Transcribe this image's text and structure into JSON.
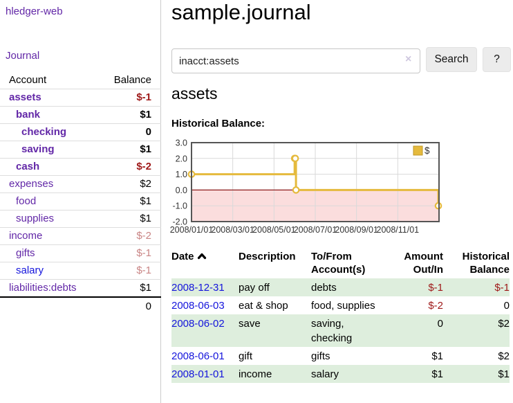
{
  "brand": "hledger-web",
  "nav": {
    "journal": "Journal"
  },
  "colors": {
    "purple": "#6227a7",
    "blue": "#1414dc",
    "neg_strong": "#9e1818",
    "neg_muted": "#c98585",
    "row_green": "#deeedd",
    "gold": "#e5ba3d",
    "gold_dark": "#bf9727",
    "pink": "#fbdddd",
    "zero_line": "#8c1a1a",
    "grid": "#d9d9d9",
    "chart_border": "#555555",
    "button_bg": "#ececec"
  },
  "sidebar_accounts": {
    "headers": {
      "account": "Account",
      "balance": "Balance"
    },
    "rows": [
      {
        "name": "assets",
        "indent": 1,
        "bold": true,
        "link_color": "purple",
        "balance": "$-1",
        "balance_style": "neg-strong"
      },
      {
        "name": "bank",
        "indent": 2,
        "bold": true,
        "link_color": "purple",
        "balance": "$1",
        "balance_style": "pos"
      },
      {
        "name": "checking",
        "indent": 3,
        "bold": true,
        "link_color": "purple",
        "balance": "0",
        "balance_style": "pos"
      },
      {
        "name": "saving",
        "indent": 3,
        "bold": true,
        "link_color": "purple",
        "balance": "$1",
        "balance_style": "pos"
      },
      {
        "name": "cash",
        "indent": 2,
        "bold": true,
        "link_color": "purple",
        "balance": "$-2",
        "balance_style": "neg-strong"
      },
      {
        "name": "expenses",
        "indent": 1,
        "bold": false,
        "link_color": "purple",
        "balance": "$2",
        "balance_style": "pos"
      },
      {
        "name": "food",
        "indent": 2,
        "bold": false,
        "link_color": "purple",
        "balance": "$1",
        "balance_style": "pos"
      },
      {
        "name": "supplies",
        "indent": 2,
        "bold": false,
        "link_color": "purple",
        "balance": "$1",
        "balance_style": "pos"
      },
      {
        "name": "income",
        "indent": 1,
        "bold": false,
        "link_color": "purple",
        "balance": "$-2",
        "balance_style": "neg-muted"
      },
      {
        "name": "gifts",
        "indent": 2,
        "bold": false,
        "link_color": "purple",
        "balance": "$-1",
        "balance_style": "neg-muted"
      },
      {
        "name": "salary",
        "indent": 2,
        "bold": false,
        "link_color": "blue",
        "balance": "$-1",
        "balance_style": "neg-muted"
      },
      {
        "name": "liabilities:debts",
        "indent": 1,
        "bold": false,
        "link_color": "purple",
        "balance": "$1",
        "balance_style": "pos"
      }
    ],
    "total": "0"
  },
  "header": {
    "title": "sample.journal"
  },
  "search": {
    "value": "inacct:assets",
    "clear_icon": "×",
    "button": "Search",
    "help_button": "?"
  },
  "account_page": {
    "title": "assets",
    "chart_label": "Historical Balance:"
  },
  "chart_data": {
    "type": "line",
    "step": true,
    "title": "Historical Balance",
    "series": [
      {
        "name": "$",
        "points": [
          {
            "date": "2008-01-01",
            "value": 1
          },
          {
            "date": "2008-06-01",
            "value": 2
          },
          {
            "date": "2008-06-02",
            "value": 2
          },
          {
            "date": "2008-06-03",
            "value": 0
          },
          {
            "date": "2008-12-31",
            "value": -1
          }
        ]
      }
    ],
    "ylim": [
      -2.0,
      3.0
    ],
    "ytick_labels": [
      "3.0",
      "2.0",
      "1.0",
      "0.0",
      "-1.0",
      "-2.0"
    ],
    "ytick_values": [
      3,
      2,
      1,
      0,
      -1,
      -2
    ],
    "xtick_labels": [
      "2008/01/01",
      "2008/03/01",
      "2008/05/01",
      "2008/07/01",
      "2008/09/01",
      "2008/11/01"
    ],
    "xtick_month_offsets": [
      0,
      2,
      4,
      6,
      8,
      10
    ],
    "x_range_months": 12,
    "grid": true,
    "legend": "$",
    "legend_position": "top-right",
    "negative_region_shaded": true
  },
  "register": {
    "columns": [
      {
        "label": "Date",
        "sorted_asc": true,
        "align": "left"
      },
      {
        "label": "Description",
        "align": "left"
      },
      {
        "label": "To/From Account(s)",
        "align": "left"
      },
      {
        "label": "Amount Out/In",
        "align": "right"
      },
      {
        "label": "Historical Balance",
        "align": "right"
      }
    ],
    "rows": [
      {
        "date": "2008-12-31",
        "description": "pay off",
        "accounts": "debts",
        "amount": "$-1",
        "amount_negative": true,
        "balance": "$-1",
        "balance_negative": true,
        "shaded": true
      },
      {
        "date": "2008-06-03",
        "description": "eat & shop",
        "accounts": "food, supplies",
        "amount": "$-2",
        "amount_negative": true,
        "balance": "0",
        "balance_negative": false,
        "shaded": false
      },
      {
        "date": "2008-06-02",
        "description": "save",
        "accounts": "saving, checking",
        "amount": "0",
        "amount_negative": false,
        "balance": "$2",
        "balance_negative": false,
        "shaded": true
      },
      {
        "date": "2008-06-01",
        "description": "gift",
        "accounts": "gifts",
        "amount": "$1",
        "amount_negative": false,
        "balance": "$2",
        "balance_negative": false,
        "shaded": false
      },
      {
        "date": "2008-01-01",
        "description": "income",
        "accounts": "salary",
        "amount": "$1",
        "amount_negative": false,
        "balance": "$1",
        "balance_negative": false,
        "shaded": true
      }
    ]
  }
}
